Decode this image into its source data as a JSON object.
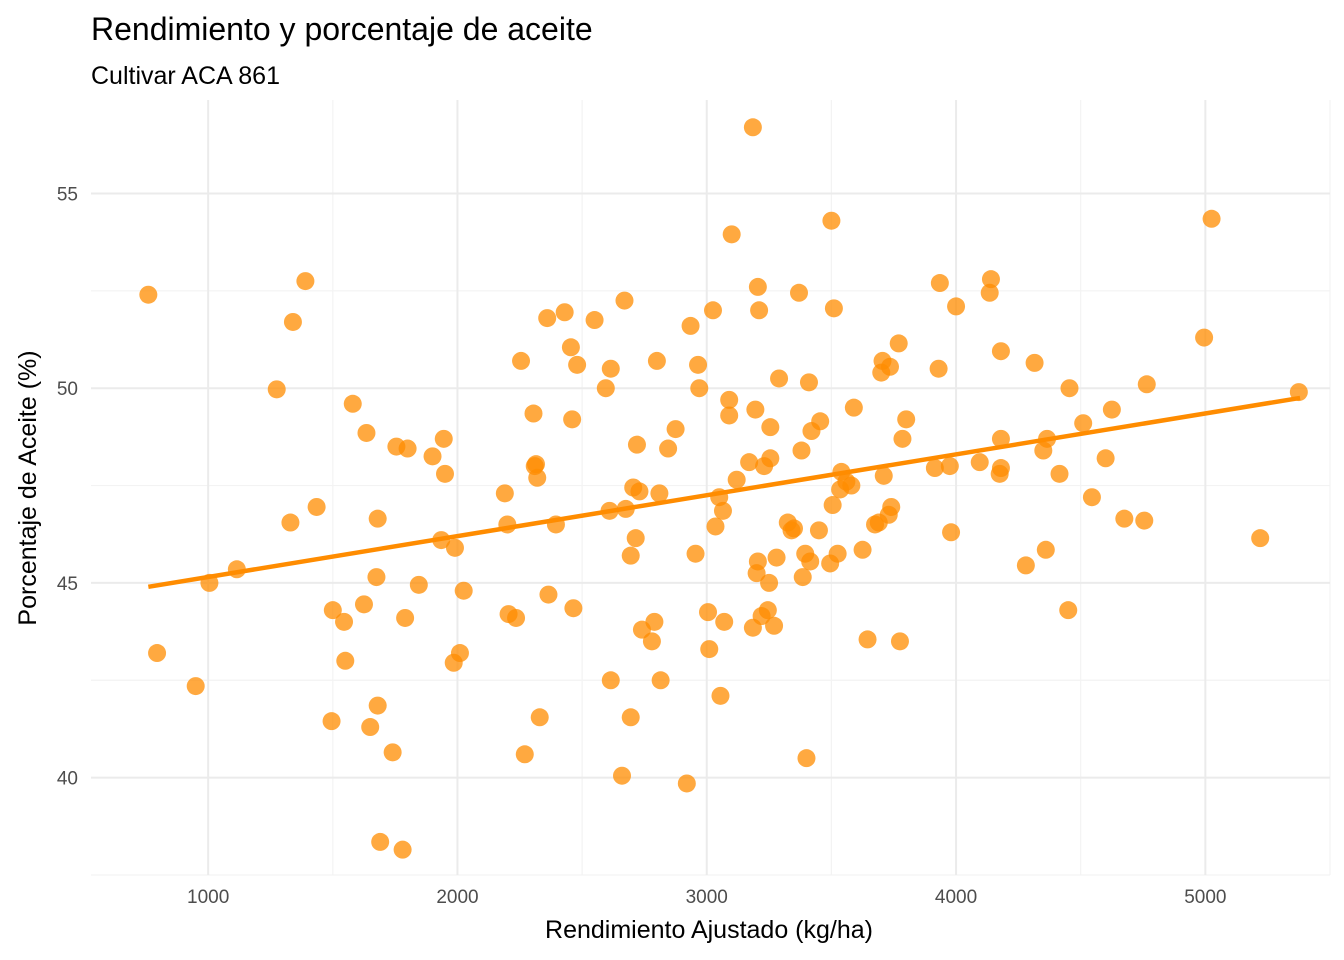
{
  "colors": {
    "point": "#FF8C00",
    "line": "#FF8C00",
    "grid": "#EBEBEB",
    "tick_text": "#4D4D4D"
  },
  "chart_data": {
    "type": "scatter",
    "title": "Rendimiento y porcentaje de aceite",
    "subtitle": "Cultivar ACA 861",
    "xlabel": "Rendimiento Ajustado (kg/ha)",
    "ylabel": "Porcentaje de Aceite (%)",
    "xlim": [
      530,
      5500
    ],
    "ylim": [
      37.5,
      57.4
    ],
    "x_ticks": [
      1000,
      2000,
      3000,
      4000,
      5000
    ],
    "x_tick_labels": [
      "1000",
      "2000",
      "3000",
      "4000",
      "5000"
    ],
    "y_ticks": [
      40,
      45,
      50,
      55
    ],
    "y_tick_labels": [
      "40",
      "45",
      "50",
      "55"
    ],
    "grid": true,
    "legend": "none",
    "trend_line": {
      "type": "linear",
      "x": [
        760,
        5380
      ],
      "y": [
        44.9,
        49.75
      ]
    },
    "points": [
      {
        "x": 760,
        "y": 52.4
      },
      {
        "x": 795,
        "y": 43.2
      },
      {
        "x": 950,
        "y": 42.35
      },
      {
        "x": 1005,
        "y": 45.0
      },
      {
        "x": 1115,
        "y": 45.35
      },
      {
        "x": 1275,
        "y": 49.97
      },
      {
        "x": 1330,
        "y": 46.55
      },
      {
        "x": 1340,
        "y": 51.7
      },
      {
        "x": 1390,
        "y": 52.75
      },
      {
        "x": 1435,
        "y": 46.95
      },
      {
        "x": 1500,
        "y": 44.3
      },
      {
        "x": 1495,
        "y": 41.45
      },
      {
        "x": 1545,
        "y": 44.0
      },
      {
        "x": 1550,
        "y": 43.0
      },
      {
        "x": 1580,
        "y": 49.6
      },
      {
        "x": 1625,
        "y": 44.45
      },
      {
        "x": 1635,
        "y": 48.85
      },
      {
        "x": 1650,
        "y": 41.3
      },
      {
        "x": 1675,
        "y": 45.15
      },
      {
        "x": 1680,
        "y": 46.65
      },
      {
        "x": 1680,
        "y": 41.85
      },
      {
        "x": 1690,
        "y": 38.35
      },
      {
        "x": 1740,
        "y": 40.65
      },
      {
        "x": 1755,
        "y": 48.5
      },
      {
        "x": 1780,
        "y": 38.15
      },
      {
        "x": 1790,
        "y": 44.1
      },
      {
        "x": 1800,
        "y": 48.45
      },
      {
        "x": 1845,
        "y": 44.95
      },
      {
        "x": 1900,
        "y": 48.25
      },
      {
        "x": 1935,
        "y": 46.1
      },
      {
        "x": 1945,
        "y": 48.7
      },
      {
        "x": 1950,
        "y": 47.8
      },
      {
        "x": 1985,
        "y": 42.95
      },
      {
        "x": 1990,
        "y": 45.9
      },
      {
        "x": 2010,
        "y": 43.2
      },
      {
        "x": 2025,
        "y": 44.8
      },
      {
        "x": 2190,
        "y": 47.3
      },
      {
        "x": 2200,
        "y": 46.5
      },
      {
        "x": 2205,
        "y": 44.2
      },
      {
        "x": 2235,
        "y": 44.1
      },
      {
        "x": 2255,
        "y": 50.7
      },
      {
        "x": 2270,
        "y": 40.6
      },
      {
        "x": 2305,
        "y": 49.35
      },
      {
        "x": 2310,
        "y": 48.0
      },
      {
        "x": 2315,
        "y": 48.05
      },
      {
        "x": 2320,
        "y": 47.7
      },
      {
        "x": 2330,
        "y": 41.55
      },
      {
        "x": 2360,
        "y": 51.8
      },
      {
        "x": 2365,
        "y": 44.7
      },
      {
        "x": 2395,
        "y": 46.5
      },
      {
        "x": 2430,
        "y": 51.95
      },
      {
        "x": 2455,
        "y": 51.05
      },
      {
        "x": 2460,
        "y": 49.2
      },
      {
        "x": 2465,
        "y": 44.35
      },
      {
        "x": 2480,
        "y": 50.6
      },
      {
        "x": 2550,
        "y": 51.75
      },
      {
        "x": 2595,
        "y": 50.0
      },
      {
        "x": 2610,
        "y": 46.85
      },
      {
        "x": 2615,
        "y": 50.5
      },
      {
        "x": 2615,
        "y": 42.5
      },
      {
        "x": 2660,
        "y": 40.05
      },
      {
        "x": 2670,
        "y": 52.25
      },
      {
        "x": 2675,
        "y": 46.9
      },
      {
        "x": 2695,
        "y": 45.7
      },
      {
        "x": 2695,
        "y": 41.55
      },
      {
        "x": 2705,
        "y": 47.45
      },
      {
        "x": 2715,
        "y": 46.15
      },
      {
        "x": 2720,
        "y": 48.55
      },
      {
        "x": 2730,
        "y": 47.35
      },
      {
        "x": 2740,
        "y": 43.8
      },
      {
        "x": 2780,
        "y": 43.5
      },
      {
        "x": 2790,
        "y": 44.0
      },
      {
        "x": 2800,
        "y": 50.7
      },
      {
        "x": 2810,
        "y": 47.3
      },
      {
        "x": 2815,
        "y": 42.5
      },
      {
        "x": 2845,
        "y": 48.45
      },
      {
        "x": 2875,
        "y": 48.95
      },
      {
        "x": 2920,
        "y": 39.85
      },
      {
        "x": 2935,
        "y": 51.6
      },
      {
        "x": 2955,
        "y": 45.75
      },
      {
        "x": 2965,
        "y": 50.6
      },
      {
        "x": 2970,
        "y": 50.0
      },
      {
        "x": 3005,
        "y": 44.25
      },
      {
        "x": 3010,
        "y": 43.3
      },
      {
        "x": 3025,
        "y": 52.0
      },
      {
        "x": 3035,
        "y": 46.45
      },
      {
        "x": 3050,
        "y": 47.2
      },
      {
        "x": 3055,
        "y": 42.1
      },
      {
        "x": 3065,
        "y": 46.85
      },
      {
        "x": 3070,
        "y": 44.0
      },
      {
        "x": 3090,
        "y": 49.7
      },
      {
        "x": 3090,
        "y": 49.3
      },
      {
        "x": 3100,
        "y": 53.95
      },
      {
        "x": 3120,
        "y": 47.65
      },
      {
        "x": 3170,
        "y": 48.1
      },
      {
        "x": 3185,
        "y": 43.85
      },
      {
        "x": 3185,
        "y": 56.7
      },
      {
        "x": 3195,
        "y": 49.45
      },
      {
        "x": 3200,
        "y": 45.25
      },
      {
        "x": 3205,
        "y": 45.55
      },
      {
        "x": 3205,
        "y": 52.6
      },
      {
        "x": 3210,
        "y": 52.0
      },
      {
        "x": 3220,
        "y": 44.15
      },
      {
        "x": 3230,
        "y": 48.0
      },
      {
        "x": 3245,
        "y": 44.3
      },
      {
        "x": 3250,
        "y": 45.0
      },
      {
        "x": 3255,
        "y": 48.2
      },
      {
        "x": 3255,
        "y": 49.0
      },
      {
        "x": 3270,
        "y": 43.9
      },
      {
        "x": 3280,
        "y": 45.65
      },
      {
        "x": 3290,
        "y": 50.25
      },
      {
        "x": 3325,
        "y": 46.55
      },
      {
        "x": 3340,
        "y": 46.35
      },
      {
        "x": 3350,
        "y": 46.4
      },
      {
        "x": 3370,
        "y": 52.45
      },
      {
        "x": 3380,
        "y": 48.4
      },
      {
        "x": 3385,
        "y": 45.15
      },
      {
        "x": 3395,
        "y": 45.75
      },
      {
        "x": 3400,
        "y": 40.5
      },
      {
        "x": 3410,
        "y": 50.15
      },
      {
        "x": 3415,
        "y": 45.55
      },
      {
        "x": 3420,
        "y": 48.9
      },
      {
        "x": 3450,
        "y": 46.35
      },
      {
        "x": 3455,
        "y": 49.15
      },
      {
        "x": 3495,
        "y": 45.5
      },
      {
        "x": 3500,
        "y": 54.3
      },
      {
        "x": 3505,
        "y": 47.0
      },
      {
        "x": 3510,
        "y": 52.05
      },
      {
        "x": 3525,
        "y": 45.75
      },
      {
        "x": 3535,
        "y": 47.4
      },
      {
        "x": 3540,
        "y": 47.85
      },
      {
        "x": 3560,
        "y": 47.6
      },
      {
        "x": 3580,
        "y": 47.5
      },
      {
        "x": 3590,
        "y": 49.5
      },
      {
        "x": 3625,
        "y": 45.85
      },
      {
        "x": 3645,
        "y": 43.55
      },
      {
        "x": 3675,
        "y": 46.5
      },
      {
        "x": 3690,
        "y": 46.55
      },
      {
        "x": 3700,
        "y": 50.4
      },
      {
        "x": 3705,
        "y": 50.7
      },
      {
        "x": 3710,
        "y": 47.75
      },
      {
        "x": 3730,
        "y": 46.75
      },
      {
        "x": 3735,
        "y": 50.55
      },
      {
        "x": 3740,
        "y": 46.95
      },
      {
        "x": 3770,
        "y": 51.15
      },
      {
        "x": 3775,
        "y": 43.5
      },
      {
        "x": 3785,
        "y": 48.7
      },
      {
        "x": 3800,
        "y": 49.2
      },
      {
        "x": 3915,
        "y": 47.95
      },
      {
        "x": 3930,
        "y": 50.5
      },
      {
        "x": 3935,
        "y": 52.7
      },
      {
        "x": 3975,
        "y": 48.0
      },
      {
        "x": 3980,
        "y": 46.3
      },
      {
        "x": 4000,
        "y": 52.1
      },
      {
        "x": 4095,
        "y": 48.1
      },
      {
        "x": 4135,
        "y": 52.45
      },
      {
        "x": 4140,
        "y": 52.8
      },
      {
        "x": 4175,
        "y": 47.8
      },
      {
        "x": 4180,
        "y": 47.95
      },
      {
        "x": 4180,
        "y": 48.7
      },
      {
        "x": 4180,
        "y": 50.95
      },
      {
        "x": 4280,
        "y": 45.45
      },
      {
        "x": 4315,
        "y": 50.65
      },
      {
        "x": 4350,
        "y": 48.4
      },
      {
        "x": 4360,
        "y": 45.85
      },
      {
        "x": 4365,
        "y": 48.7
      },
      {
        "x": 4415,
        "y": 47.8
      },
      {
        "x": 4450,
        "y": 44.3
      },
      {
        "x": 4455,
        "y": 50.0
      },
      {
        "x": 4510,
        "y": 49.1
      },
      {
        "x": 4545,
        "y": 47.2
      },
      {
        "x": 4600,
        "y": 48.2
      },
      {
        "x": 4625,
        "y": 49.45
      },
      {
        "x": 4675,
        "y": 46.65
      },
      {
        "x": 4755,
        "y": 46.6
      },
      {
        "x": 4765,
        "y": 50.1
      },
      {
        "x": 4995,
        "y": 51.3
      },
      {
        "x": 5025,
        "y": 54.35
      },
      {
        "x": 5220,
        "y": 46.15
      },
      {
        "x": 5375,
        "y": 49.9
      }
    ]
  }
}
